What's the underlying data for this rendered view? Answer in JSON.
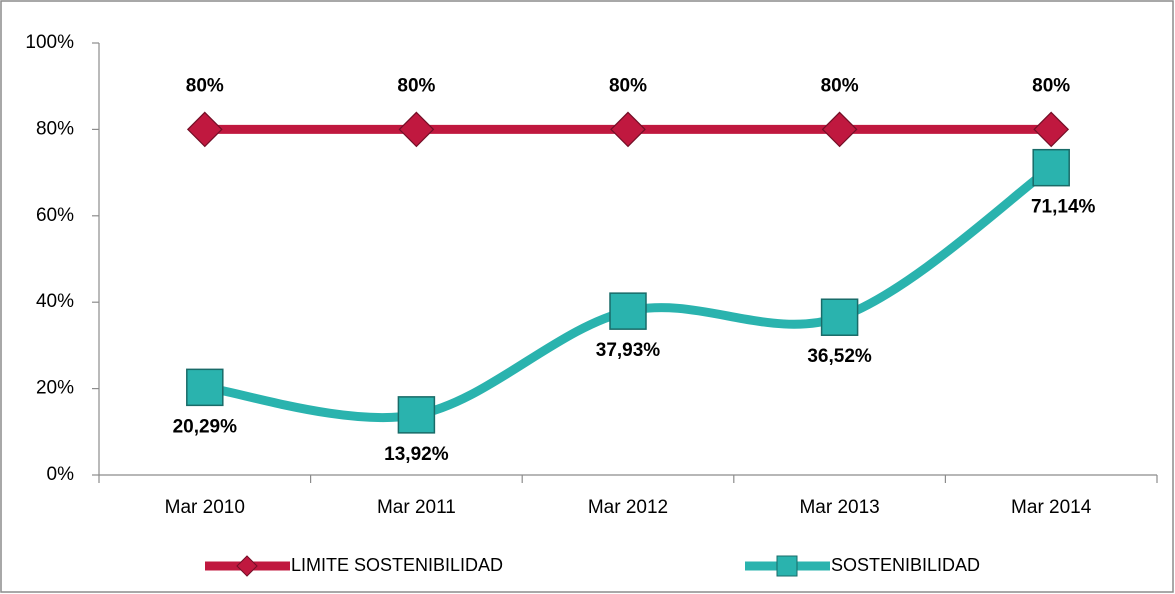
{
  "chart_data": {
    "type": "line",
    "categories": [
      "Mar 2010",
      "Mar 2011",
      "Mar 2012",
      "Mar 2013",
      "Mar 2014"
    ],
    "series": [
      {
        "name": "LIMITE SOSTENIBILIDAD",
        "color": "#c0183f",
        "marker": "diamond",
        "smooth": false,
        "values": [
          80,
          80,
          80,
          80,
          80
        ],
        "value_labels": [
          "80%",
          "80%",
          "80%",
          "80%",
          "80%"
        ]
      },
      {
        "name": "SOSTENIBILIDAD",
        "color": "#2ab3ae",
        "marker": "square",
        "smooth": true,
        "values": [
          20.29,
          13.92,
          37.93,
          36.52,
          71.14
        ],
        "value_labels": [
          "20,29%",
          "13,92%",
          "37,93%",
          "36,52%",
          "71,14%"
        ]
      }
    ],
    "ylim": [
      0,
      100
    ],
    "yticks": [
      {
        "value": 0,
        "label": "0%"
      },
      {
        "value": 20,
        "label": "20%"
      },
      {
        "value": 40,
        "label": "40%"
      },
      {
        "value": 60,
        "label": "60%"
      },
      {
        "value": 80,
        "label": "80%"
      },
      {
        "value": 100,
        "label": "100%"
      }
    ],
    "grid": false,
    "legend": "bottom"
  }
}
